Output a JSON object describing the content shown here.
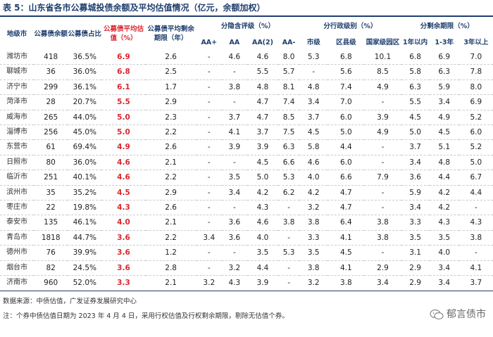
{
  "title": "表 5：山东省各市公募城投债余额及平均估值情况（亿元，余额加权）",
  "headers": {
    "city": "地级市",
    "balance": "公募债余额",
    "share": "公募债占比",
    "valuation": "公募债平均估值（%）",
    "term": "公募债平均剩余期限（年）",
    "group_rating": "分隐含评级（%）",
    "group_admin": "分行政级别（%）",
    "group_term": "分剩余期限（%）",
    "sub": [
      "AA+",
      "AA",
      "AA(2)",
      "AA-",
      "市级",
      "区县级",
      "国家级园区",
      "1年以内",
      "1-3年",
      "3年以上"
    ]
  },
  "rows": [
    [
      "潍坊市",
      "418",
      "36.5%",
      "6.9",
      "2.6",
      "-",
      "4.6",
      "4.6",
      "8.0",
      "5.3",
      "6.8",
      "10.1",
      "6.8",
      "6.9",
      "7.0"
    ],
    [
      "聊城市",
      "36",
      "36.0%",
      "6.8",
      "2.5",
      "-",
      "-",
      "5.5",
      "5.7",
      "-",
      "5.6",
      "8.5",
      "5.8",
      "6.3",
      "7.8"
    ],
    [
      "济宁市",
      "299",
      "36.1%",
      "6.1",
      "1.7",
      "-",
      "3.8",
      "4.8",
      "8.1",
      "4.8",
      "7.4",
      "4.9",
      "6.3",
      "5.9",
      "8.0"
    ],
    [
      "菏泽市",
      "28",
      "20.7%",
      "5.5",
      "2.9",
      "-",
      "-",
      "4.7",
      "7.4",
      "3.4",
      "7.0",
      "-",
      "5.5",
      "3.4",
      "6.9"
    ],
    [
      "威海市",
      "265",
      "44.0%",
      "5.0",
      "2.3",
      "-",
      "3.7",
      "4.7",
      "8.5",
      "3.7",
      "6.0",
      "3.9",
      "4.5",
      "4.9",
      "5.2"
    ],
    [
      "淄博市",
      "256",
      "45.0%",
      "5.0",
      "2.2",
      "-",
      "4.1",
      "3.7",
      "7.5",
      "4.5",
      "5.0",
      "4.9",
      "5.0",
      "4.5",
      "6.0"
    ],
    [
      "东营市",
      "61",
      "69.4%",
      "4.9",
      "2.6",
      "-",
      "3.9",
      "3.9",
      "6.3",
      "5.8",
      "4.4",
      "-",
      "3.7",
      "5.1",
      "5.2"
    ],
    [
      "日照市",
      "80",
      "36.0%",
      "4.6",
      "2.1",
      "-",
      "-",
      "4.5",
      "6.6",
      "4.6",
      "6.0",
      "-",
      "3.4",
      "4.8",
      "5.0"
    ],
    [
      "临沂市",
      "251",
      "40.1%",
      "4.6",
      "2.2",
      "-",
      "3.5",
      "5.0",
      "5.3",
      "4.0",
      "6.6",
      "7.9",
      "3.6",
      "4.4",
      "6.7"
    ],
    [
      "滨州市",
      "35",
      "35.2%",
      "4.5",
      "2.9",
      "-",
      "3.4",
      "4.2",
      "6.2",
      "4.2",
      "4.7",
      "-",
      "5.9",
      "4.2",
      "4.4"
    ],
    [
      "枣庄市",
      "22",
      "19.8%",
      "4.3",
      "2.6",
      "-",
      "-",
      "4.3",
      "-",
      "3.2",
      "4.7",
      "-",
      "3.4",
      "4.2",
      "-"
    ],
    [
      "泰安市",
      "135",
      "46.1%",
      "4.0",
      "2.1",
      "-",
      "3.6",
      "4.6",
      "3.8",
      "3.8",
      "6.4",
      "3.8",
      "3.3",
      "4.3",
      "4.3"
    ],
    [
      "青岛市",
      "1818",
      "44.7%",
      "3.6",
      "2.2",
      "3.4",
      "3.6",
      "4.0",
      "-",
      "3.3",
      "4.1",
      "3.8",
      "3.5",
      "3.5",
      "3.8"
    ],
    [
      "德州市",
      "76",
      "39.9%",
      "3.6",
      "1.2",
      "-",
      "-",
      "3.5",
      "5.3",
      "3.5",
      "4.5",
      "-",
      "3.1",
      "4.0",
      "-"
    ],
    [
      "烟台市",
      "82",
      "24.5%",
      "3.6",
      "2.8",
      "-",
      "3.2",
      "4.4",
      "-",
      "3.8",
      "4.1",
      "2.9",
      "2.9",
      "3.4",
      "4.1"
    ],
    [
      "济南市",
      "960",
      "52.0%",
      "3.3",
      "2.1",
      "3.2",
      "4.3",
      "3.9",
      "-",
      "3.2",
      "3.8",
      "3.4",
      "2.9",
      "3.4",
      "3.7"
    ]
  ],
  "source": "数据来源：中债估值，广发证券发展研究中心",
  "note": "注：个券中债估值日期为 2023 年 4 月 4 日，采用行权估值及行权剩余期限，剔除无估值个券。",
  "watermark": "郁言债市",
  "colors": {
    "accent": "#1f3f6e",
    "highlight": "#d9282f"
  }
}
